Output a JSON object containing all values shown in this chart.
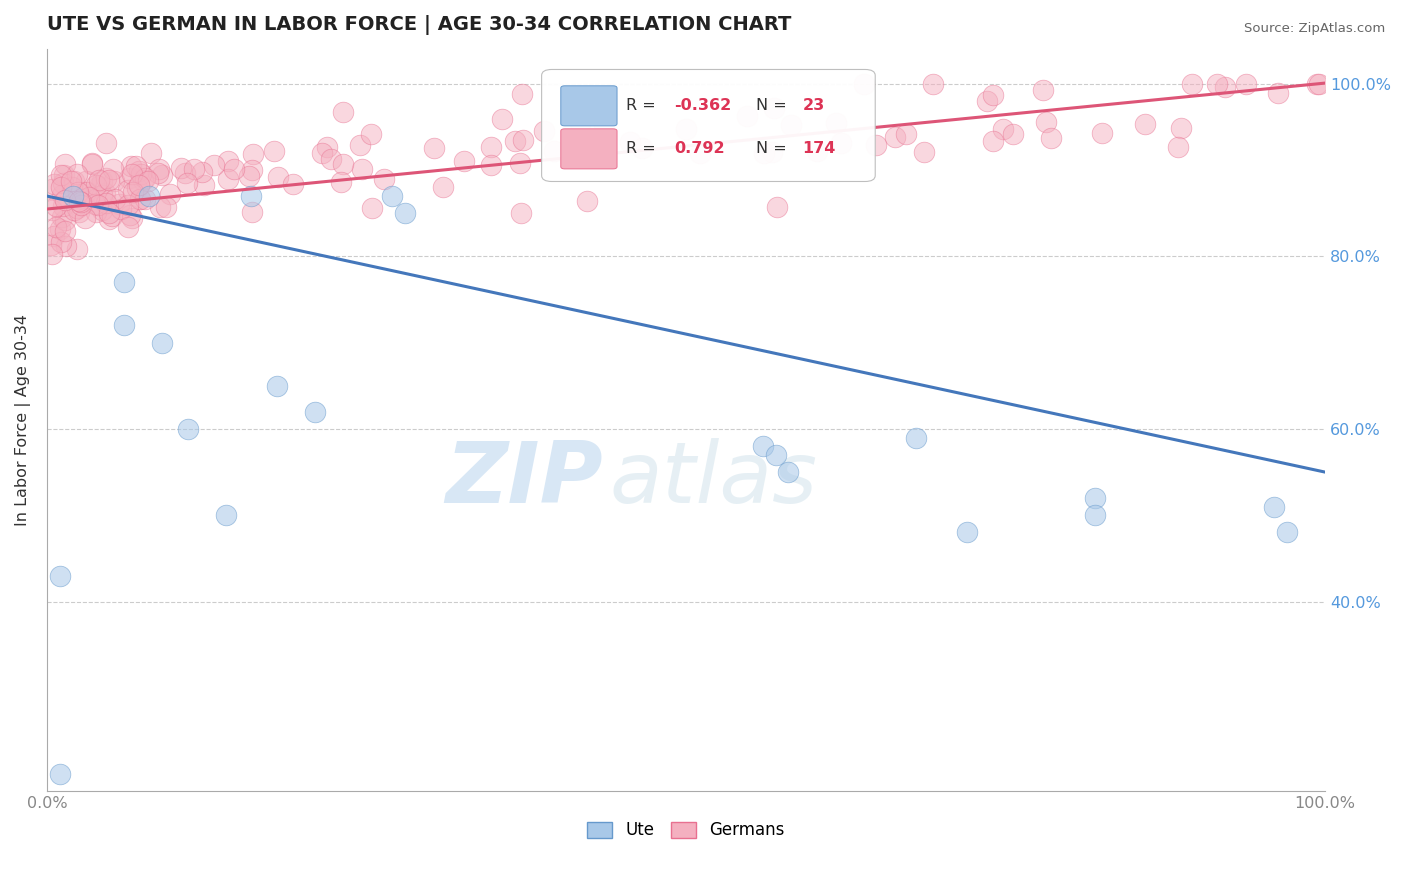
{
  "title": "UTE VS GERMAN IN LABOR FORCE | AGE 30-34 CORRELATION CHART",
  "ylabel": "In Labor Force | Age 30-34",
  "source_text": "Source: ZipAtlas.com",
  "watermark_zip": "ZIP",
  "watermark_atlas": "atlas",
  "xlim": [
    0.0,
    1.0
  ],
  "ylim": [
    0.18,
    1.04
  ],
  "ytick_vals": [
    0.4,
    0.6,
    0.8,
    1.0
  ],
  "ytick_labels": [
    "40.0%",
    "60.0%",
    "80.0%",
    "100.0%"
  ],
  "xtick_vals": [
    0.0,
    0.1,
    0.2,
    0.3,
    0.4,
    0.5,
    0.6,
    0.7,
    0.8,
    0.9,
    1.0
  ],
  "xtick_labels": [
    "0.0%",
    "",
    "",
    "",
    "",
    "",
    "",
    "",
    "",
    "",
    "100.0%"
  ],
  "ute_R": -0.362,
  "ute_N": 23,
  "german_R": 0.792,
  "german_N": 174,
  "ute_color": "#a8c8e8",
  "german_color": "#f4b0c0",
  "ute_edge_color": "#6699cc",
  "german_edge_color": "#e87090",
  "ute_line_color": "#4477bb",
  "german_line_color": "#dd5577",
  "ytick_color": "#5599dd",
  "xtick_color": "#888888",
  "grid_color": "#cccccc",
  "background_color": "#ffffff",
  "legend_R_color_ute": "#dd3355",
  "legend_R_color_german": "#dd3355",
  "ute_x": [
    0.01,
    0.02,
    0.06,
    0.06,
    0.08,
    0.09,
    0.11,
    0.14,
    0.16,
    0.18,
    0.21,
    0.27,
    0.28,
    0.56,
    0.57,
    0.58,
    0.68,
    0.72,
    0.82,
    0.82,
    0.96,
    0.97,
    0.01
  ],
  "ute_y": [
    0.2,
    0.87,
    0.77,
    0.72,
    0.87,
    0.7,
    0.6,
    0.5,
    0.87,
    0.65,
    0.62,
    0.87,
    0.85,
    0.58,
    0.57,
    0.55,
    0.59,
    0.48,
    0.52,
    0.5,
    0.51,
    0.48,
    0.43
  ],
  "ute_line_x0": 0.0,
  "ute_line_x1": 1.0,
  "ute_line_y0": 0.87,
  "ute_line_y1": 0.55,
  "german_line_x0": 0.0,
  "german_line_x1": 1.0,
  "german_line_y0": 0.855,
  "german_line_y1": 1.001
}
